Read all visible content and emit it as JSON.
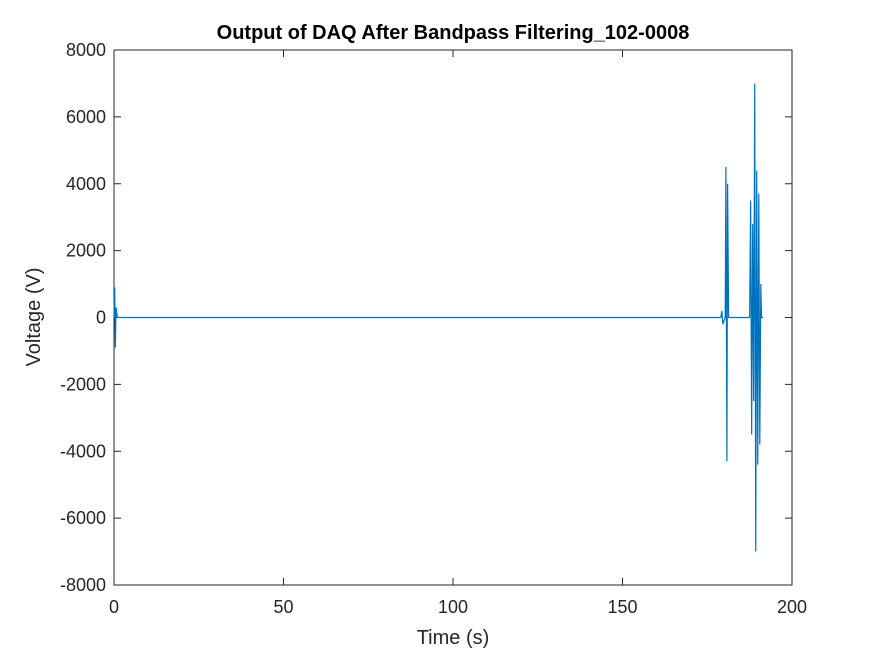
{
  "chart_data": {
    "type": "line",
    "title": "Output of DAQ After Bandpass Filtering_102-0008",
    "xlabel": "Time (s)",
    "ylabel": "Voltage (V)",
    "xlim": [
      0,
      200
    ],
    "ylim": [
      -8000,
      8000
    ],
    "xticks": [
      0,
      50,
      100,
      150,
      200
    ],
    "yticks": [
      -8000,
      -6000,
      -4000,
      -2000,
      0,
      2000,
      4000,
      6000,
      8000
    ],
    "grid": false,
    "legend": "none",
    "series": [
      {
        "color": "#0072BD",
        "x": [
          0,
          0.2,
          0.4,
          0.6,
          1.0,
          60,
          120,
          179.0,
          179.3,
          179.6,
          180.3,
          180.5,
          180.8,
          181.0,
          181.3,
          187.5,
          187.8,
          188.1,
          188.4,
          188.7,
          189.0,
          189.3,
          189.6,
          189.9,
          190.2,
          190.5,
          190.8,
          191.0,
          191.5
        ],
        "y": [
          0,
          900,
          -900,
          300,
          0,
          0,
          0,
          0,
          200,
          -200,
          0,
          4500,
          -4300,
          4000,
          0,
          0,
          3500,
          -3500,
          2800,
          -2500,
          7000,
          -7000,
          4400,
          -4400,
          3700,
          -3800,
          1000,
          0,
          0
        ]
      }
    ]
  }
}
